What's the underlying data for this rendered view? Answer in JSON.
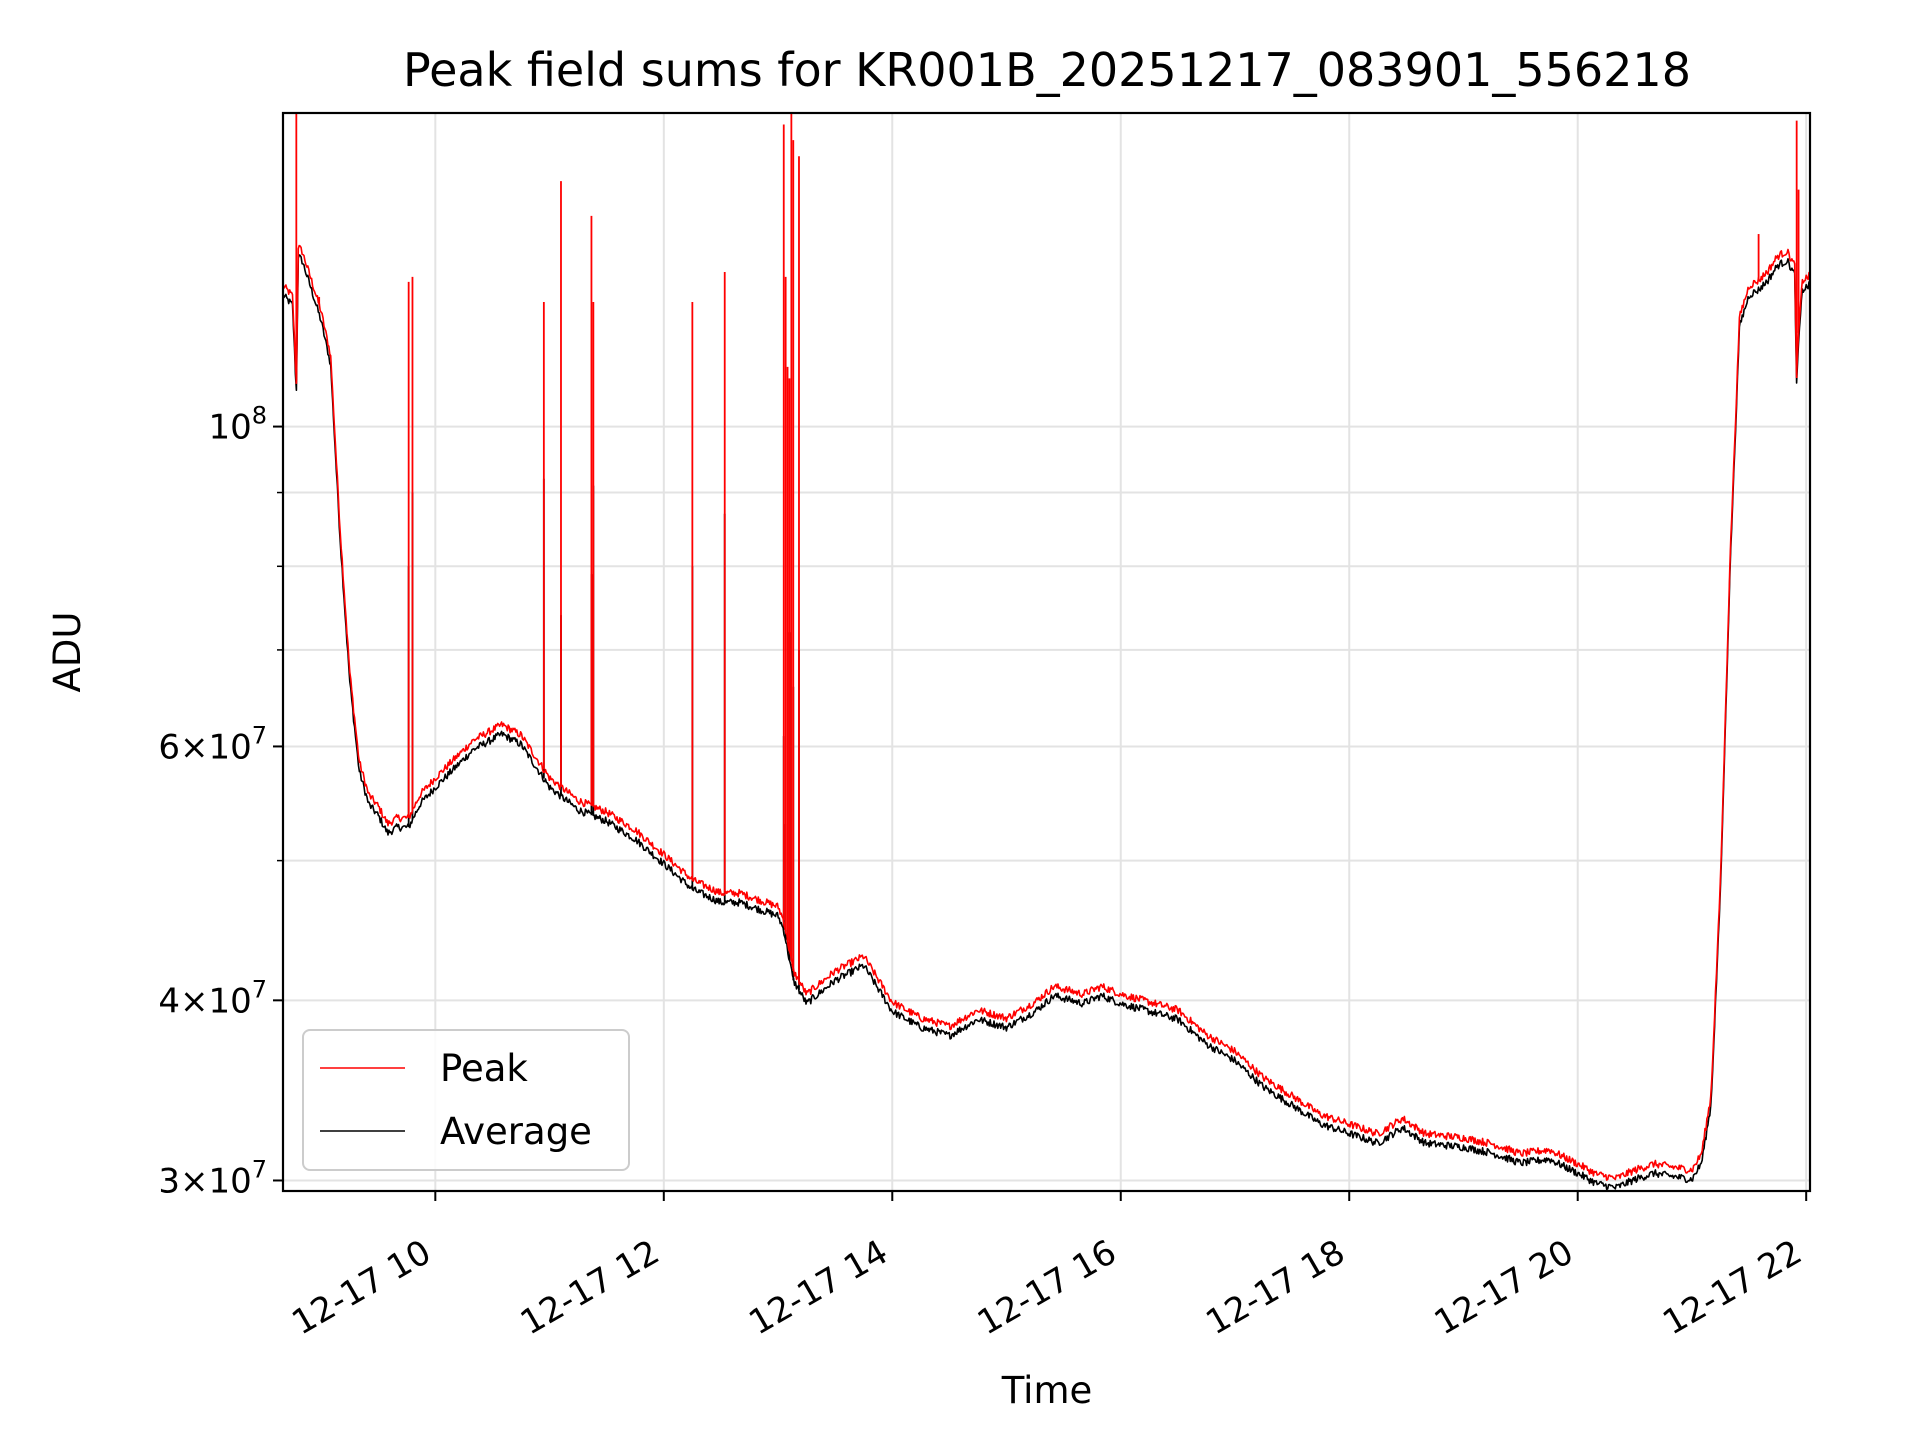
{
  "chart_data": {
    "type": "line",
    "title": "Peak field sums for KR001B_20251217_083901_556218",
    "xlabel": "Time",
    "ylabel": "ADU",
    "yscale": "log",
    "ylim": [
      29500000,
      165000000
    ],
    "xlim": [
      "2025-12-17 08:40",
      "2025-12-17 22:02"
    ],
    "grid": true,
    "legend_position": "lower-left",
    "x_ticks": [
      {
        "value": "2025-12-17 10:00",
        "label": "12-17 10"
      },
      {
        "value": "2025-12-17 12:00",
        "label": "12-17 12"
      },
      {
        "value": "2025-12-17 14:00",
        "label": "12-17 14"
      },
      {
        "value": "2025-12-17 16:00",
        "label": "12-17 16"
      },
      {
        "value": "2025-12-17 18:00",
        "label": "12-17 18"
      },
      {
        "value": "2025-12-17 20:00",
        "label": "12-17 20"
      },
      {
        "value": "2025-12-17 22:00",
        "label": "12-17 22"
      }
    ],
    "y_ticks": [
      {
        "value": 30000000,
        "mantissa": "3",
        "exponent": "7"
      },
      {
        "value": 40000000,
        "mantissa": "4",
        "exponent": "7"
      },
      {
        "value": 60000000,
        "mantissa": "6",
        "exponent": "7"
      },
      {
        "value": 100000000,
        "mantissa": "",
        "exponent": "8"
      }
    ],
    "y_minor_ticks": [
      50000000,
      70000000,
      80000000,
      90000000
    ],
    "series": [
      {
        "name": "Peak",
        "color": "#ff0000",
        "base_offset": 1.01,
        "x": [
          "2025-12-17 08:40",
          "2025-12-17 08:45",
          "2025-12-17 08:47",
          "2025-12-17 08:48",
          "2025-12-17 08:50",
          "2025-12-17 08:55",
          "2025-12-17 09:00",
          "2025-12-17 09:05",
          "2025-12-17 09:10",
          "2025-12-17 09:15",
          "2025-12-17 09:20",
          "2025-12-17 09:25",
          "2025-12-17 09:30",
          "2025-12-17 09:35",
          "2025-12-17 09:40",
          "2025-12-17 09:46",
          "2025-12-17 09:52",
          "2025-12-17 10:00",
          "2025-12-17 10:20",
          "2025-12-17 10:35",
          "2025-12-17 10:45",
          "2025-12-17 11:00",
          "2025-12-17 11:15",
          "2025-12-17 11:30",
          "2025-12-17 11:45",
          "2025-12-17 12:00",
          "2025-12-17 12:15",
          "2025-12-17 12:30",
          "2025-12-17 12:40",
          "2025-12-17 13:00",
          "2025-12-17 13:03",
          "2025-12-17 13:08",
          "2025-12-17 13:15",
          "2025-12-17 13:30",
          "2025-12-17 13:45",
          "2025-12-17 14:00",
          "2025-12-17 14:15",
          "2025-12-17 14:30",
          "2025-12-17 14:45",
          "2025-12-17 15:00",
          "2025-12-17 15:15",
          "2025-12-17 15:25",
          "2025-12-17 15:40",
          "2025-12-17 15:50",
          "2025-12-17 16:00",
          "2025-12-17 16:15",
          "2025-12-17 16:30",
          "2025-12-17 16:45",
          "2025-12-17 17:00",
          "2025-12-17 17:15",
          "2025-12-17 17:30",
          "2025-12-17 17:45",
          "2025-12-17 18:00",
          "2025-12-17 18:15",
          "2025-12-17 18:28",
          "2025-12-17 18:40",
          "2025-12-17 19:00",
          "2025-12-17 19:15",
          "2025-12-17 19:30",
          "2025-12-17 19:45",
          "2025-12-17 20:00",
          "2025-12-17 20:10",
          "2025-12-17 20:20",
          "2025-12-17 20:30",
          "2025-12-17 20:40",
          "2025-12-17 21:00",
          "2025-12-17 21:05",
          "2025-12-17 21:10",
          "2025-12-17 21:15",
          "2025-12-17 21:20",
          "2025-12-17 21:25",
          "2025-12-17 21:30",
          "2025-12-17 21:35",
          "2025-12-17 21:40",
          "2025-12-17 21:45",
          "2025-12-17 21:50",
          "2025-12-17 21:54",
          "2025-12-17 21:55",
          "2025-12-17 21:56",
          "2025-12-17 21:58",
          "2025-12-17 22:02"
        ],
        "y": [
          124000000,
          122000000,
          106000000,
          132000000,
          131000000,
          125000000,
          119000000,
          111000000,
          84000000,
          67000000,
          58000000,
          55000000,
          54000000,
          52500000,
          53000000,
          53000000,
          55000000,
          56500000,
          60000000,
          61500000,
          60500000,
          56500000,
          54500000,
          53500000,
          52000000,
          50000000,
          48000000,
          47000000,
          47000000,
          46000000,
          45000000,
          41500000,
          40000000,
          41500000,
          42500000,
          39500000,
          38500000,
          38000000,
          39000000,
          38500000,
          39500000,
          40500000,
          40000000,
          40500000,
          40000000,
          39500000,
          39000000,
          37500000,
          36500000,
          35000000,
          34000000,
          33000000,
          32500000,
          32000000,
          32800000,
          32000000,
          31800000,
          31500000,
          31000000,
          31200000,
          30500000,
          30000000,
          29800000,
          30200000,
          30500000,
          30200000,
          31000000,
          34000000,
          48000000,
          80000000,
          118000000,
          124000000,
          125000000,
          127000000,
          130000000,
          131000000,
          128000000,
          107000000,
          115000000,
          125000000,
          126000000
        ],
        "spikes": [
          {
            "x": "2025-12-17 08:47",
            "y": 178000000
          },
          {
            "x": "2025-12-17 08:59",
            "y": 123000000
          },
          {
            "x": "2025-12-17 09:46",
            "y": 126000000
          },
          {
            "x": "2025-12-17 09:48",
            "y": 127000000
          },
          {
            "x": "2025-12-17 10:57",
            "y": 122000000
          },
          {
            "x": "2025-12-17 11:06",
            "y": 148000000
          },
          {
            "x": "2025-12-17 11:22",
            "y": 140000000
          },
          {
            "x": "2025-12-17 11:23",
            "y": 122000000
          },
          {
            "x": "2025-12-17 12:15",
            "y": 122000000
          },
          {
            "x": "2025-12-17 12:32",
            "y": 128000000
          },
          {
            "x": "2025-12-17 13:03",
            "y": 162000000
          },
          {
            "x": "2025-12-17 13:04",
            "y": 127000000
          },
          {
            "x": "2025-12-17 13:05",
            "y": 110000000
          },
          {
            "x": "2025-12-17 13:06",
            "y": 108000000
          },
          {
            "x": "2025-12-17 13:07",
            "y": 166000000
          },
          {
            "x": "2025-12-17 13:08",
            "y": 158000000
          },
          {
            "x": "2025-12-17 13:11",
            "y": 154000000
          },
          {
            "x": "2025-12-17 21:35",
            "y": 136000000
          },
          {
            "x": "2025-12-17 21:55",
            "y": 163000000
          },
          {
            "x": "2025-12-17 21:56",
            "y": 146000000
          }
        ]
      },
      {
        "name": "Average",
        "color": "#000000",
        "base_offset": 0.995,
        "x": [
          "2025-12-17 08:40",
          "2025-12-17 08:45",
          "2025-12-17 08:47",
          "2025-12-17 08:48",
          "2025-12-17 08:50",
          "2025-12-17 08:55",
          "2025-12-17 09:00",
          "2025-12-17 09:05",
          "2025-12-17 09:10",
          "2025-12-17 09:15",
          "2025-12-17 09:20",
          "2025-12-17 09:25",
          "2025-12-17 09:30",
          "2025-12-17 09:35",
          "2025-12-17 09:40",
          "2025-12-17 09:46",
          "2025-12-17 09:52",
          "2025-12-17 10:00",
          "2025-12-17 10:20",
          "2025-12-17 10:35",
          "2025-12-17 10:45",
          "2025-12-17 11:00",
          "2025-12-17 11:15",
          "2025-12-17 11:30",
          "2025-12-17 11:45",
          "2025-12-17 12:00",
          "2025-12-17 12:15",
          "2025-12-17 12:30",
          "2025-12-17 12:40",
          "2025-12-17 13:00",
          "2025-12-17 13:03",
          "2025-12-17 13:08",
          "2025-12-17 13:15",
          "2025-12-17 13:30",
          "2025-12-17 13:45",
          "2025-12-17 14:00",
          "2025-12-17 14:15",
          "2025-12-17 14:30",
          "2025-12-17 14:45",
          "2025-12-17 15:00",
          "2025-12-17 15:15",
          "2025-12-17 15:25",
          "2025-12-17 15:40",
          "2025-12-17 15:50",
          "2025-12-17 16:00",
          "2025-12-17 16:15",
          "2025-12-17 16:30",
          "2025-12-17 16:45",
          "2025-12-17 17:00",
          "2025-12-17 17:15",
          "2025-12-17 17:30",
          "2025-12-17 17:45",
          "2025-12-17 18:00",
          "2025-12-17 18:15",
          "2025-12-17 18:28",
          "2025-12-17 18:40",
          "2025-12-17 19:00",
          "2025-12-17 19:15",
          "2025-12-17 19:30",
          "2025-12-17 19:45",
          "2025-12-17 20:00",
          "2025-12-17 20:10",
          "2025-12-17 20:20",
          "2025-12-17 20:30",
          "2025-12-17 20:40",
          "2025-12-17 21:00",
          "2025-12-17 21:05",
          "2025-12-17 21:10",
          "2025-12-17 21:15",
          "2025-12-17 21:20",
          "2025-12-17 21:25",
          "2025-12-17 21:30",
          "2025-12-17 21:35",
          "2025-12-17 21:40",
          "2025-12-17 21:45",
          "2025-12-17 21:50",
          "2025-12-17 21:54",
          "2025-12-17 21:55",
          "2025-12-17 21:56",
          "2025-12-17 21:58",
          "2025-12-17 22:02"
        ],
        "y": [
          124000000,
          122000000,
          106000000,
          132000000,
          131000000,
          125000000,
          119000000,
          111000000,
          84000000,
          67000000,
          58000000,
          55000000,
          54000000,
          52500000,
          53000000,
          53000000,
          55000000,
          56500000,
          60000000,
          61500000,
          60500000,
          56500000,
          54500000,
          53500000,
          52000000,
          50000000,
          48000000,
          47000000,
          47000000,
          46000000,
          45000000,
          41500000,
          40000000,
          41500000,
          42500000,
          39500000,
          38500000,
          38000000,
          39000000,
          38500000,
          39500000,
          40500000,
          40000000,
          40500000,
          40000000,
          39500000,
          39000000,
          37500000,
          36500000,
          35000000,
          34000000,
          33000000,
          32500000,
          32000000,
          32800000,
          32000000,
          31800000,
          31500000,
          31000000,
          31200000,
          30500000,
          30000000,
          29800000,
          30200000,
          30500000,
          30200000,
          31000000,
          34000000,
          48000000,
          80000000,
          118000000,
          124000000,
          125000000,
          127000000,
          130000000,
          131000000,
          128000000,
          107000000,
          115000000,
          125000000,
          126000000
        ],
        "spikes": [
          {
            "x": "2025-12-17 09:46",
            "y": 80000000
          },
          {
            "x": "2025-12-17 09:48",
            "y": 90000000
          },
          {
            "x": "2025-12-17 10:57",
            "y": 92000000
          },
          {
            "x": "2025-12-17 11:06",
            "y": 74000000
          },
          {
            "x": "2025-12-17 11:22",
            "y": 79000000
          },
          {
            "x": "2025-12-17 11:23",
            "y": 91000000
          },
          {
            "x": "2025-12-17 12:15",
            "y": 80000000
          },
          {
            "x": "2025-12-17 12:32",
            "y": 87000000
          },
          {
            "x": "2025-12-17 13:03",
            "y": 61000000
          },
          {
            "x": "2025-12-17 13:04",
            "y": 53000000
          },
          {
            "x": "2025-12-17 13:06",
            "y": 72000000
          },
          {
            "x": "2025-12-17 13:08",
            "y": 66000000
          },
          {
            "x": "2025-12-17 13:11",
            "y": 70000000
          }
        ]
      }
    ]
  }
}
